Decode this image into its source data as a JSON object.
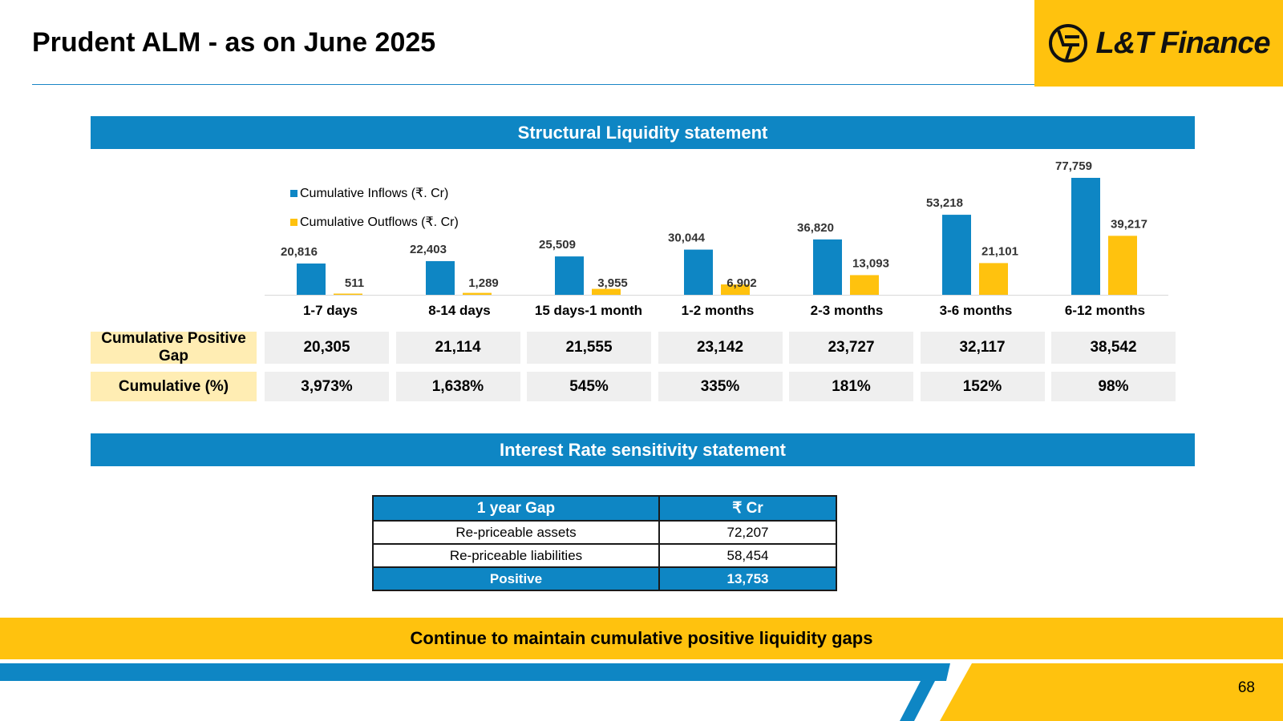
{
  "header": {
    "title": "Prudent ALM - as on June 2025",
    "logo_text": "L&T Finance"
  },
  "sections": {
    "liquidity_title": "Structural Liquidity statement",
    "interest_title": "Interest Rate sensitivity statement"
  },
  "chart_data": {
    "type": "bar",
    "categories": [
      "1-7 days",
      "8-14 days",
      "15 days-1 month",
      "1-2 months",
      "2-3 months",
      "3-6 months",
      "6-12 months"
    ],
    "series": [
      {
        "name": "Cumulative Inflows (₹. Cr)",
        "values": [
          20816,
          22403,
          25509,
          30044,
          36820,
          53218,
          77759
        ],
        "labels": [
          "20,816",
          "22,403",
          "25,509",
          "30,044",
          "36,820",
          "53,218",
          "77,759"
        ],
        "color": "#0e86c4"
      },
      {
        "name": "Cumulative Outflows (₹. Cr)",
        "values": [
          511,
          1289,
          3955,
          6902,
          13093,
          21101,
          39217
        ],
        "labels": [
          "511",
          "1,289",
          "3,955",
          "6,902",
          "13,093",
          "21,101",
          "39,217"
        ],
        "color": "#ffc20e"
      }
    ],
    "legend": "top-left",
    "grid": false
  },
  "gap_rows": [
    {
      "label": "Cumulative Positive Gap",
      "values": [
        "20,305",
        "21,114",
        "21,555",
        "23,142",
        "23,727",
        "32,117",
        "38,542"
      ]
    },
    {
      "label": "Cumulative (%)",
      "values": [
        "3,973%",
        "1,638%",
        "545%",
        "335%",
        "181%",
        "152%",
        "98%"
      ]
    }
  ],
  "irs_table": {
    "headers": [
      "1 year Gap",
      "₹ Cr"
    ],
    "rows": [
      [
        "Re-priceable assets",
        "72,207"
      ],
      [
        "Re-priceable liabilities",
        "58,454"
      ]
    ],
    "total": [
      "Positive",
      "13,753"
    ]
  },
  "footer": {
    "message": "Continue to maintain cumulative positive liquidity gaps",
    "page_number": "68"
  },
  "colors": {
    "brand_blue": "#0e86c4",
    "brand_yellow": "#ffc20e",
    "gap_label_bg": "#ffedb3",
    "cell_bg": "#efefef"
  }
}
